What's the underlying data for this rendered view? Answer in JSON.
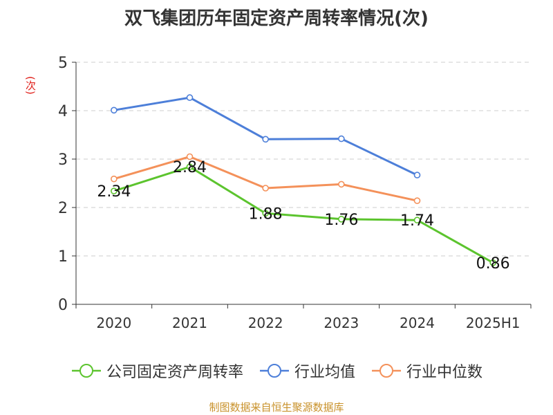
{
  "chart_data": {
    "type": "line",
    "title": "双飞集团历年固定资产周转率情况(次)",
    "ylabel": "(次)",
    "xlabel": "",
    "categories": [
      "2020",
      "2021",
      "2022",
      "2023",
      "2024",
      "2025H1"
    ],
    "ylim": [
      0,
      5
    ],
    "yticks": [
      0,
      1,
      2,
      3,
      4,
      5
    ],
    "grid": true,
    "legend_position": "bottom",
    "series": [
      {
        "name": "公司固定资产周转率",
        "color": "#5cc42e",
        "values": [
          2.34,
          2.84,
          1.88,
          1.76,
          1.74,
          0.86
        ],
        "labels": [
          "2.34",
          "2.84",
          "1.88",
          "1.76",
          "1.74",
          "0.86"
        ]
      },
      {
        "name": "行业均值",
        "color": "#4d7fd9",
        "values": [
          4.01,
          4.27,
          3.41,
          3.42,
          2.67,
          null
        ]
      },
      {
        "name": "行业中位数",
        "color": "#f4915a",
        "values": [
          2.59,
          3.05,
          2.4,
          2.48,
          2.14,
          null
        ]
      }
    ]
  },
  "source": "制图数据来自恒生聚源数据库"
}
